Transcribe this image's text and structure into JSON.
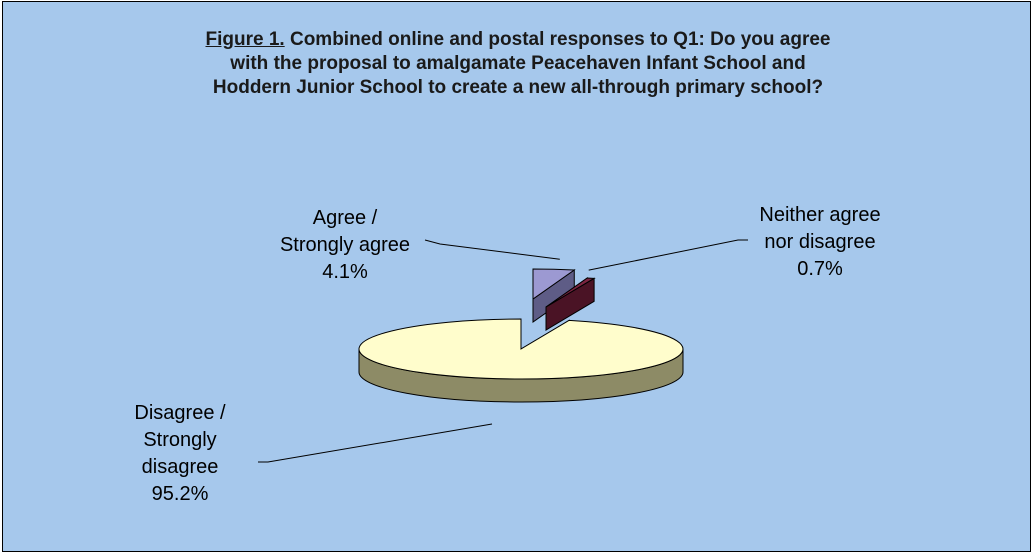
{
  "chart_data": {
    "type": "pie",
    "style": "3d-exploded",
    "title": {
      "figure_label": "Figure 1.",
      "text": " Combined online and postal responses to Q1: Do you agree with the proposal to amalgamate Peacehaven Infant School and Hoddern Junior School to create a new all-through primary school?"
    },
    "slices": [
      {
        "label_lines": [
          "Agree /",
          "Strongly agree"
        ],
        "value": 4.1,
        "value_label": "4.1%"
      },
      {
        "label_lines": [
          "Neither agree",
          "nor disagree"
        ],
        "value": 0.7,
        "value_label": "0.7%"
      },
      {
        "label_lines": [
          "Disagree /",
          "Strongly",
          "disagree"
        ],
        "value": 95.2,
        "value_label": "95.2%"
      }
    ]
  },
  "colors": {
    "background": "#a6c8ec",
    "disagree_top": "#fffdcc",
    "disagree_side": "#8d8b66",
    "agree_top": "#9c99d2",
    "agree_side": "#5e5c86",
    "neither_top": "#7a2440",
    "neither_side": "#4a1325",
    "outline": "#000000"
  }
}
